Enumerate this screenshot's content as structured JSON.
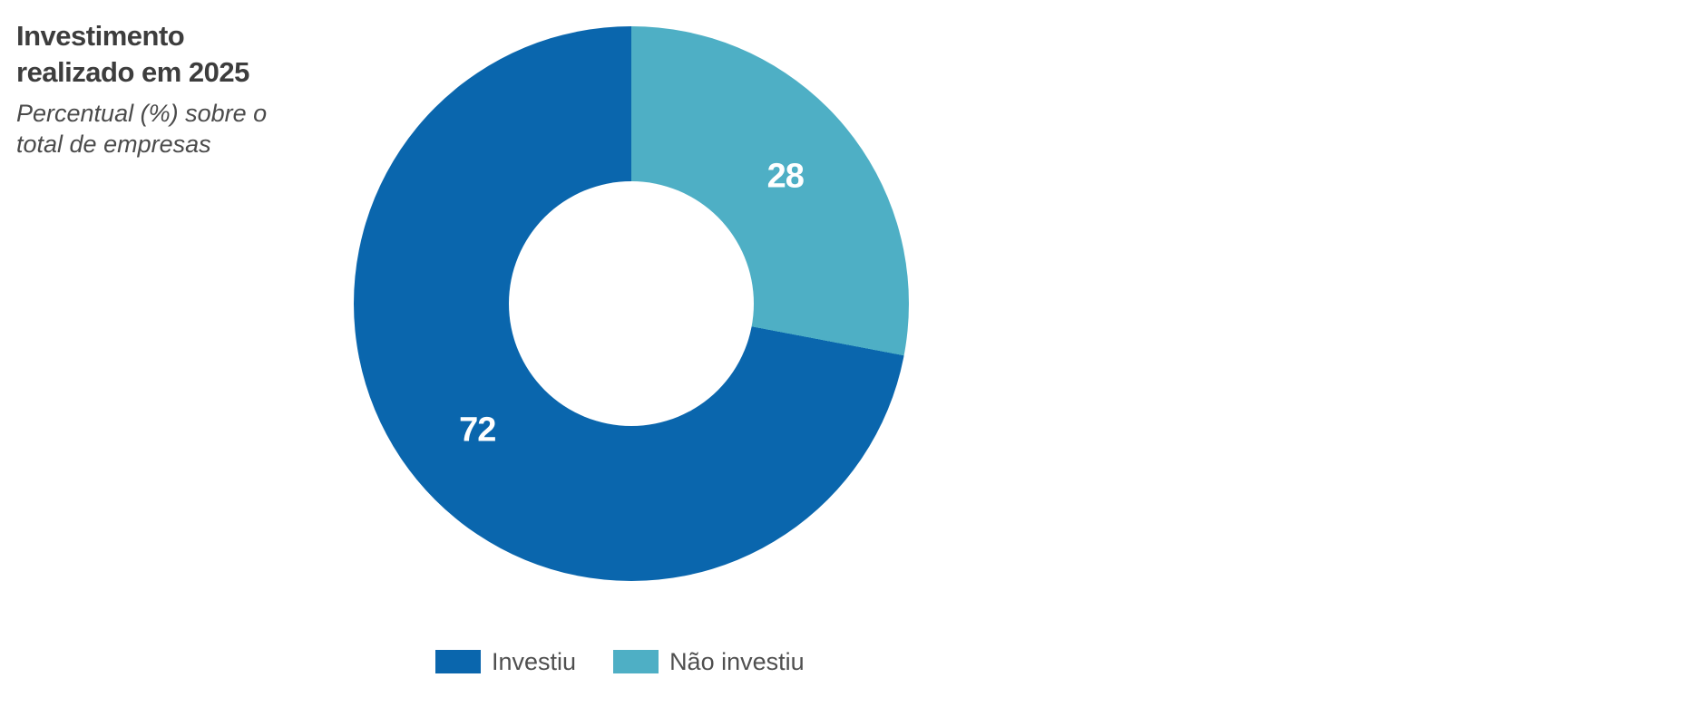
{
  "page": {
    "background": "#ffffff"
  },
  "header": {
    "title_line1": "Investimento",
    "title_line2": "realizado em 2025",
    "subtitle_line1": "Percentual (%) sobre o",
    "subtitle_line2": "total de empresas"
  },
  "chart_data": {
    "type": "pie",
    "variant": "donut",
    "title": "Investimento realizado em 2025",
    "subtitle": "Percentual (%) sobre o total de empresas",
    "unit": "percent",
    "start_angle_deg": 0,
    "direction": "clockwise",
    "inner_radius_ratio": 0.44,
    "label_radius_ratio": 0.72,
    "data_label_color": "#ffffff",
    "slices": [
      {
        "label": "Não investiu",
        "value": 28,
        "color": "#4eafc5"
      },
      {
        "label": "Investiu",
        "value": 72,
        "color": "#0a66ad"
      }
    ],
    "legend_position": "bottom",
    "legend": [
      {
        "label": "Investiu",
        "color": "#0a66ad"
      },
      {
        "label": "Não investiu",
        "color": "#4eafc5"
      }
    ]
  }
}
